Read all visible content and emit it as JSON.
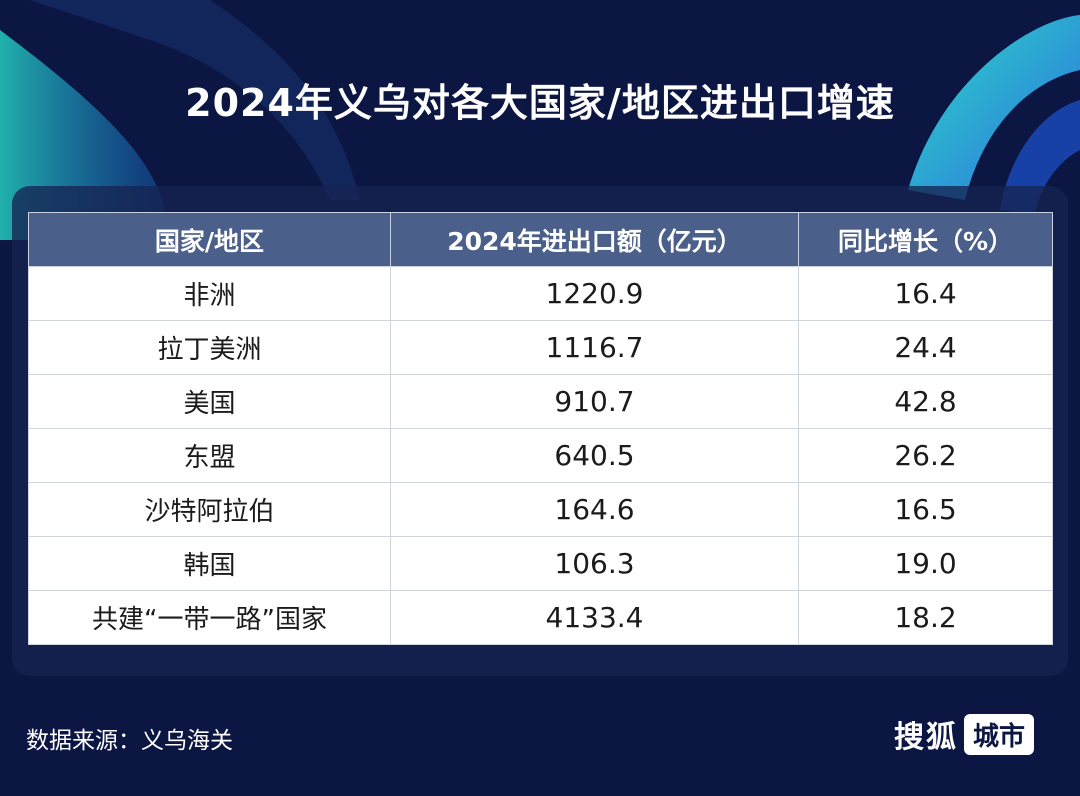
{
  "title": "2024年义乌对各大国家/地区进出口增速",
  "source": "数据来源：义乌海关",
  "brand": {
    "main": "搜狐",
    "tag": "城市"
  },
  "colors": {
    "background": "#0b1642",
    "header_fill": "#4b5f8b",
    "accent_teal": "#2fd0c2",
    "accent_blue": "#2a7fe0"
  },
  "chart_data": {
    "type": "table",
    "columns": [
      "国家/地区",
      "2024年进出口额（亿元）",
      "同比增长（%）"
    ],
    "rows": [
      {
        "region": "非洲",
        "value": "1220.9",
        "growth": "16.4"
      },
      {
        "region": "拉丁美洲",
        "value": "1116.7",
        "growth": "24.4"
      },
      {
        "region": "美国",
        "value": "910.7",
        "growth": "42.8"
      },
      {
        "region": "东盟",
        "value": "640.5",
        "growth": "26.2"
      },
      {
        "region": "沙特阿拉伯",
        "value": "164.6",
        "growth": "16.5"
      },
      {
        "region": "韩国",
        "value": "106.3",
        "growth": "19.0"
      },
      {
        "region": "共建“一带一路”国家",
        "value": "4133.4",
        "growth": "18.2"
      }
    ]
  }
}
